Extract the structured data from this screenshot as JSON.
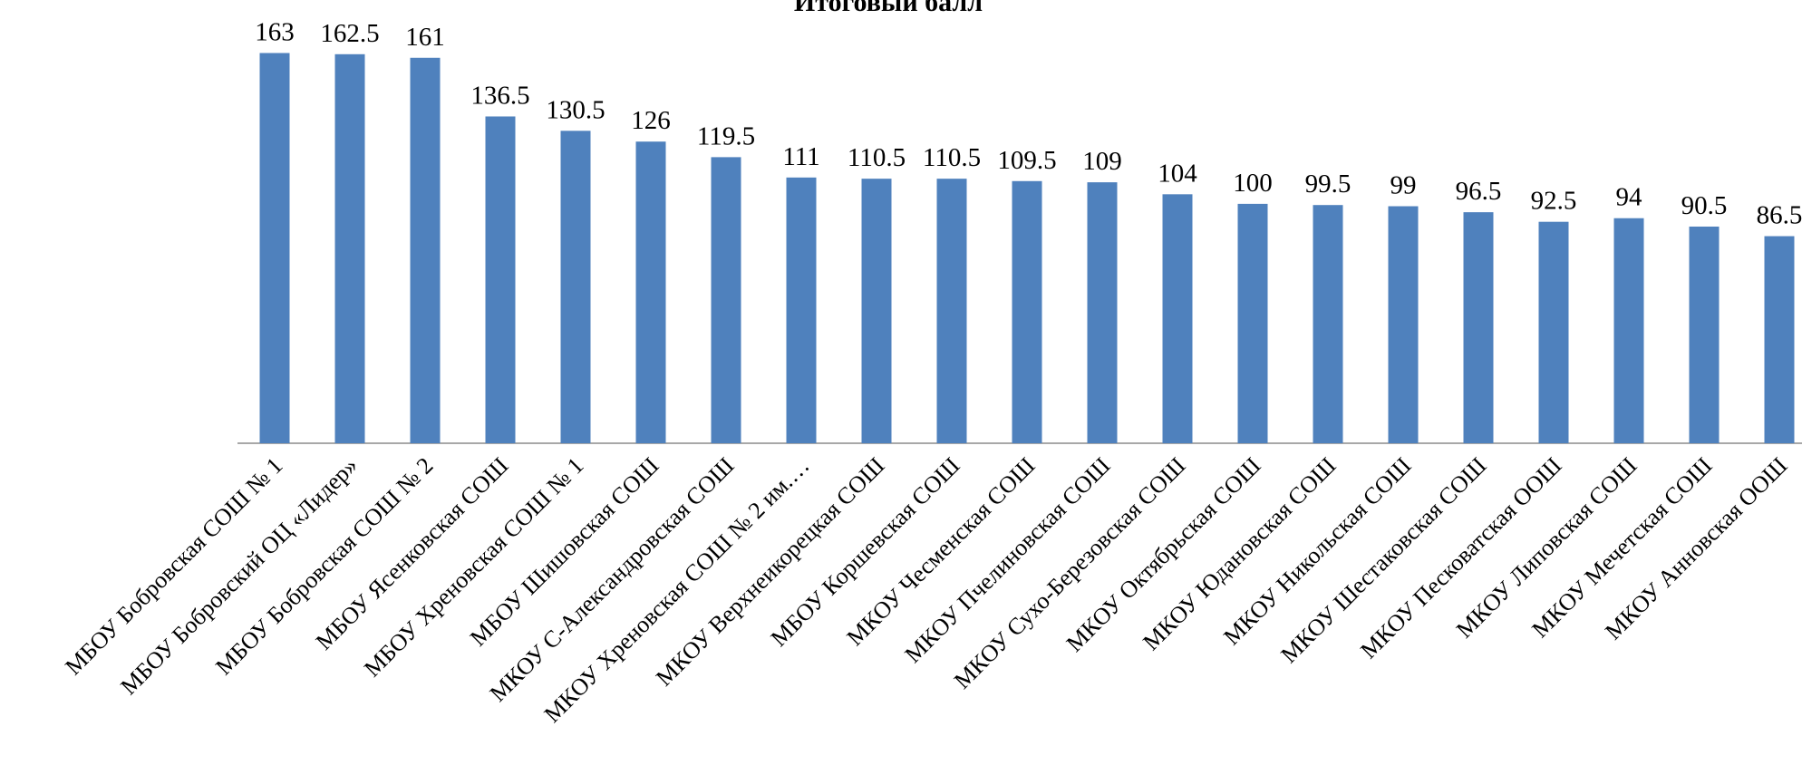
{
  "chart_data": {
    "type": "bar",
    "title": "Итоговый балл",
    "xlabel": "",
    "ylabel": "",
    "ylim": [
      0,
      170
    ],
    "grid": false,
    "legend": "none",
    "bar_color": "#4F81BD",
    "axis_color": "#8C8C8C",
    "categories": [
      "МБОУ Бобровская СОШ № 1",
      "МБОУ Бобровский ОЦ «Лидер»",
      "МБОУ Бобровская СОШ № 2",
      "МБОУ Ясенковская СОШ",
      "МБОУ Хреновская СОШ № 1",
      "МБОУ Шишовская СОШ",
      "МКОУ С-Александровская СОШ",
      "МКОУ Хреновская СОШ № 2 им.…",
      "МКОУ Верхнеикорецкая СОШ",
      "МБОУ Коршевская СОШ",
      "МКОУ Чесменская СОШ",
      "МКОУ Пчелиновская СОШ",
      "МКОУ Сухо-Березовская СОШ",
      "МКОУ Октябрьская СОШ",
      "МКОУ Юдановская СОШ",
      "МКОУ Никольская СОШ",
      "МКОУ Шестаковская СОШ",
      "МКОУ Песковатская ООШ",
      "МКОУ Липовская СОШ",
      "МКОУ Мечетская СОШ",
      "МКОУ Анновская ООШ"
    ],
    "values": [
      163,
      162.5,
      161,
      136.5,
      130.5,
      126,
      119.5,
      111,
      110.5,
      110.5,
      109.5,
      109,
      104,
      100,
      99.5,
      99,
      96.5,
      92.5,
      94,
      90.5,
      86.5
    ],
    "value_labels": [
      "163",
      "162.5",
      "161",
      "136.5",
      "130.5",
      "126",
      "119.5",
      "111",
      "110.5",
      "110.5",
      "109.5",
      "109",
      "104",
      "100",
      "99.5",
      "99",
      "96.5",
      "92.5",
      "94",
      "90.5",
      "86.5"
    ]
  }
}
